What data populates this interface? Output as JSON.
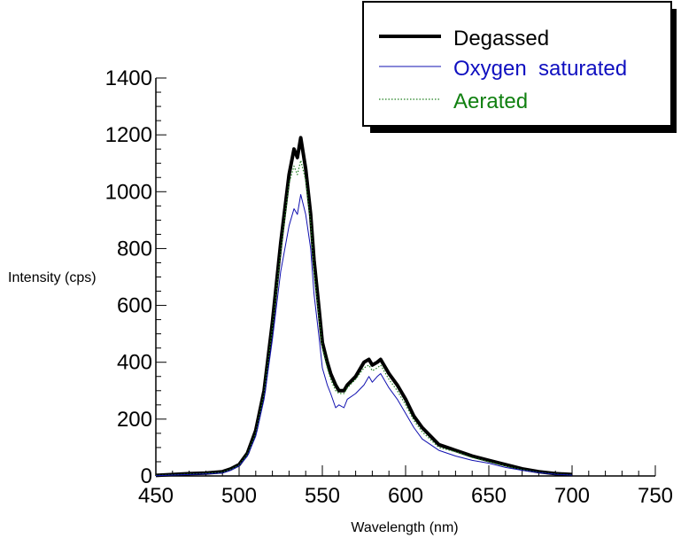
{
  "chart_data": {
    "type": "line",
    "xlabel": "Wavelength  (nm)",
    "ylabel": "Intensity   (cps)",
    "xlim": [
      450,
      750
    ],
    "ylim": [
      0,
      1400
    ],
    "xticks": [
      450,
      500,
      550,
      600,
      650,
      700,
      750
    ],
    "yticks": [
      0,
      200,
      400,
      600,
      800,
      1000,
      1200,
      1400
    ],
    "xtick_labels": [
      "450",
      "500",
      "550",
      "600",
      "650",
      "700",
      "750"
    ],
    "ytick_labels": [
      "0",
      "200",
      "400",
      "600",
      "800",
      "1000",
      "1200",
      "1400"
    ],
    "grid": false,
    "legend_position": "top-right",
    "series": [
      {
        "name": "Degassed",
        "color": "#000000",
        "style": "solid-thick",
        "x": [
          450,
          460,
          470,
          480,
          490,
          495,
          500,
          505,
          510,
          515,
          520,
          525,
          530,
          533,
          535,
          537,
          540,
          543,
          545,
          548,
          550,
          553,
          555,
          558,
          560,
          563,
          565,
          570,
          575,
          578,
          580,
          583,
          585,
          590,
          595,
          600,
          605,
          610,
          620,
          630,
          640,
          650,
          660,
          670,
          680,
          690,
          700
        ],
        "y": [
          2,
          5,
          8,
          10,
          15,
          25,
          40,
          80,
          160,
          300,
          540,
          820,
          1060,
          1150,
          1120,
          1190,
          1080,
          920,
          760,
          590,
          470,
          400,
          360,
          320,
          300,
          300,
          320,
          350,
          400,
          410,
          390,
          400,
          410,
          360,
          320,
          270,
          210,
          170,
          110,
          90,
          70,
          55,
          40,
          25,
          15,
          8,
          5
        ]
      },
      {
        "name": "Oxygen  saturated",
        "color": "#1010b0",
        "style": "solid-thin",
        "x": [
          450,
          460,
          470,
          480,
          490,
          495,
          500,
          505,
          510,
          515,
          520,
          525,
          530,
          533,
          535,
          537,
          540,
          543,
          545,
          548,
          550,
          553,
          555,
          558,
          560,
          563,
          565,
          570,
          575,
          578,
          580,
          583,
          585,
          590,
          595,
          600,
          605,
          610,
          620,
          630,
          640,
          650,
          660,
          670,
          680,
          690,
          700
        ],
        "y": [
          1,
          3,
          5,
          7,
          10,
          20,
          35,
          70,
          140,
          270,
          480,
          720,
          880,
          940,
          920,
          990,
          920,
          800,
          640,
          490,
          380,
          320,
          290,
          240,
          250,
          240,
          270,
          290,
          320,
          350,
          330,
          350,
          360,
          310,
          270,
          220,
          170,
          130,
          90,
          70,
          55,
          45,
          30,
          20,
          12,
          6,
          3
        ]
      },
      {
        "name": "Aerated",
        "color": "#208020",
        "style": "dotted",
        "x": [
          450,
          460,
          470,
          480,
          490,
          495,
          500,
          505,
          510,
          515,
          520,
          525,
          530,
          533,
          535,
          537,
          540,
          543,
          545,
          548,
          550,
          553,
          555,
          558,
          560,
          563,
          565,
          570,
          575,
          578,
          580,
          583,
          585,
          590,
          595,
          600,
          605,
          610,
          620,
          630,
          640,
          650,
          660,
          670,
          680,
          690,
          700
        ],
        "y": [
          2,
          4,
          7,
          9,
          13,
          23,
          38,
          76,
          150,
          290,
          520,
          790,
          1030,
          1090,
          1060,
          1110,
          1040,
          890,
          720,
          560,
          450,
          380,
          340,
          300,
          290,
          290,
          310,
          340,
          380,
          390,
          370,
          380,
          390,
          340,
          300,
          250,
          195,
          155,
          100,
          85,
          65,
          50,
          35,
          22,
          13,
          7,
          4
        ]
      }
    ]
  }
}
